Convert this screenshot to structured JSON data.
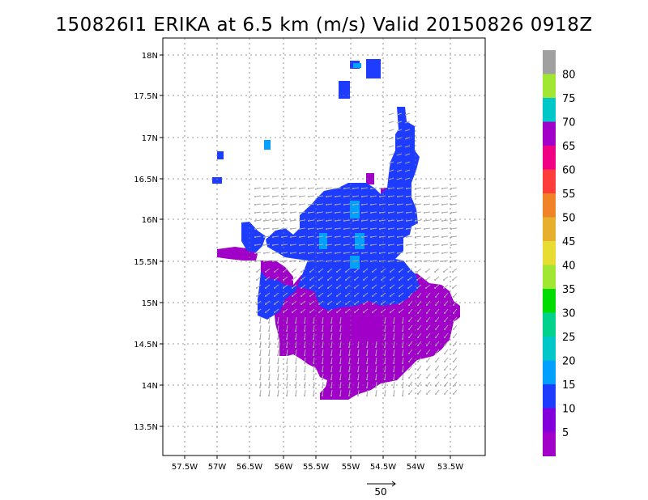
{
  "title": "150826I1 ERIKA at 6.5 km (m/s) Valid 20150826 0918Z",
  "lat_labels": [
    "18N",
    "17.5N",
    "17N",
    "16.5N",
    "16N",
    "15.5N",
    "15N",
    "14.5N",
    "14N",
    "13.5N"
  ],
  "lon_labels": [
    "57.5W",
    "57W",
    "56.5W",
    "56W",
    "55.5W",
    "55W",
    "54.5W",
    "54W",
    "53.5W"
  ],
  "colorbar": {
    "labels": [
      "80",
      "75",
      "70",
      "65",
      "60",
      "55",
      "50",
      "45",
      "40",
      "35",
      "30",
      "25",
      "20",
      "15",
      "10",
      "5"
    ],
    "colors": [
      "#a0a0a0",
      "#a0e632",
      "#00c8c8",
      "#a000c8",
      "#f00082",
      "#ff3c3c",
      "#f08228",
      "#e6af2d",
      "#e6dc32",
      "#a0e632",
      "#00dc00",
      "#00d28c",
      "#00c8c8",
      "#00a0ff",
      "#1e3cff",
      "#8200dc",
      "#a000c8"
    ]
  },
  "reference_vector": {
    "label": "50"
  },
  "wind_colors": {
    "low": "#a000c8",
    "mid": "#1e3cff",
    "high": "#00a0ff",
    "arrow": "#a8a8a8"
  }
}
